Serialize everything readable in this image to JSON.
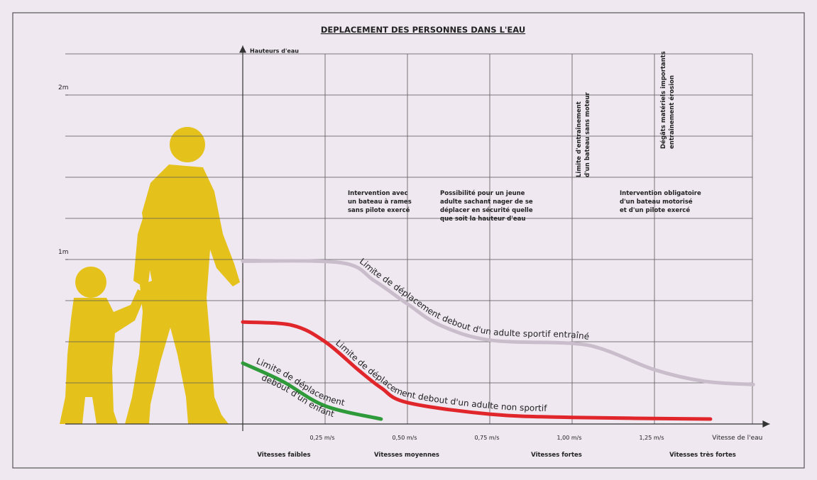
{
  "chart_data": {
    "type": "line",
    "title": "DEPLACEMENT DES PERSONNES DANS L'EAU",
    "y_label": "Hauteurs d'eau",
    "x_label": "Vitesse de l'eau",
    "xlim": [
      0,
      1.6
    ],
    "ylim": [
      0,
      2.3
    ],
    "xticks": [
      {
        "value": 0.25,
        "label": "0,25 m/s"
      },
      {
        "value": 0.5,
        "label": "0,50 m/s"
      },
      {
        "value": 0.75,
        "label": "0,75 m/s"
      },
      {
        "value": 1.0,
        "label": "1,00 m/s"
      },
      {
        "value": 1.25,
        "label": "1,25 m/s"
      }
    ],
    "yticks": [
      {
        "value": 1,
        "label": "1m"
      },
      {
        "value": 2,
        "label": "2m"
      }
    ],
    "ygrid": [
      0.25,
      0.5,
      0.75,
      1,
      1.25,
      1.5,
      1.75,
      2,
      2.25
    ],
    "grid": true,
    "zones": [
      "Vitesses faibles",
      "Vitesses moyennes",
      "Vitesses fortes",
      "Vitesses très fortes"
    ],
    "annotations": [
      [
        "Intervention avec",
        "un bateau à rames",
        "sans pilote exercé"
      ],
      [
        "Possibilité pour un jeune",
        "adulte sachant nager de se",
        "déplacer en sécurité quelle",
        "que soit la hauteur d'eau"
      ],
      [
        "Intervention obligatoire",
        "d'un bateau motorisé",
        "et d'un pilote exercé"
      ]
    ],
    "vertical_annotations": [
      [
        "Limite d'entraînement",
        "d'un bateau sans moteur"
      ],
      [
        "Dégâts matériels importants",
        "entraînement érosion"
      ]
    ],
    "series": [
      {
        "label_lines": [
          "Limite de déplacement debout d'un adulte sportif entraîné"
        ],
        "color": "#c9bccb",
        "x": [
          0,
          0.3,
          0.4,
          0.5,
          0.6,
          0.75,
          1.0,
          1.1,
          1.25,
          1.4,
          1.55
        ],
        "values": [
          0.99,
          0.98,
          0.87,
          0.73,
          0.6,
          0.51,
          0.49,
          0.45,
          0.33,
          0.26,
          0.24
        ]
      },
      {
        "label_lines": [
          "Limite de déplacement debout d'un adulte non sportif"
        ],
        "color": "#e0262a",
        "x": [
          0,
          0.15,
          0.25,
          0.35,
          0.42,
          0.5,
          0.75,
          1.0,
          1.42
        ],
        "values": [
          0.62,
          0.6,
          0.5,
          0.33,
          0.22,
          0.13,
          0.06,
          0.04,
          0.03
        ]
      },
      {
        "label_lines": [
          "Limite de déplacement",
          "debout d'un enfant"
        ],
        "color": "#2f9a3a",
        "x": [
          0,
          0.12,
          0.25,
          0.42
        ],
        "values": [
          0.37,
          0.26,
          0.11,
          0.03
        ]
      }
    ]
  }
}
